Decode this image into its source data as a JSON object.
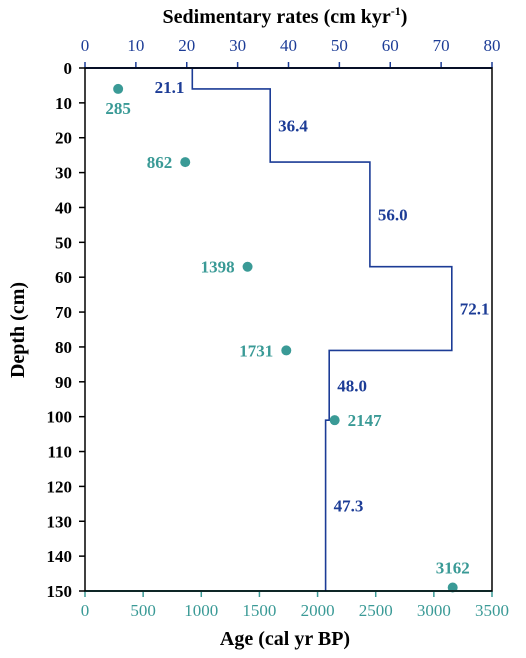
{
  "colors": {
    "age_axis": "#3a9a96",
    "rate_axis": "#1c3c96",
    "depth_axis": "#000000",
    "points": "#3a9a96",
    "rate_line": "#1c3c96"
  },
  "chart_data": {
    "type": "scatter",
    "top_axis": {
      "label": "Sedimentary rates (cm kyr",
      "label_sup": "-1",
      "label_end": ")",
      "range": [
        0,
        80
      ],
      "ticks": [
        0,
        10,
        20,
        30,
        40,
        50,
        60,
        70,
        80
      ]
    },
    "bottom_axis": {
      "label": "Age (cal yr BP)",
      "range": [
        0,
        3500
      ],
      "ticks": [
        0,
        500,
        1000,
        1500,
        2000,
        2500,
        3000,
        3500
      ]
    },
    "left_axis": {
      "label": "Depth (cm)",
      "range": [
        0,
        150
      ],
      "reversed": true,
      "ticks": [
        0,
        10,
        20,
        30,
        40,
        50,
        60,
        70,
        80,
        90,
        100,
        110,
        120,
        130,
        140,
        150
      ]
    },
    "age_points": [
      {
        "depth": 6,
        "age": 285,
        "label": "285"
      },
      {
        "depth": 27,
        "age": 862,
        "label": "862"
      },
      {
        "depth": 57,
        "age": 1398,
        "label": "1398"
      },
      {
        "depth": 81,
        "age": 1731,
        "label": "1731"
      },
      {
        "depth": 101,
        "age": 2147,
        "label": "2147"
      },
      {
        "depth": 149,
        "age": 3162,
        "label": "3162"
      }
    ],
    "rate_steps": [
      {
        "depth_top": 0,
        "depth_bottom": 6,
        "rate": 21.1,
        "label": "21.1"
      },
      {
        "depth_top": 6,
        "depth_bottom": 27,
        "rate": 36.4,
        "label": "36.4"
      },
      {
        "depth_top": 27,
        "depth_bottom": 57,
        "rate": 56.0,
        "label": "56.0"
      },
      {
        "depth_top": 57,
        "depth_bottom": 81,
        "rate": 72.1,
        "label": "72.1"
      },
      {
        "depth_top": 81,
        "depth_bottom": 101,
        "rate": 48.0,
        "label": "48.0"
      },
      {
        "depth_top": 101,
        "depth_bottom": 150,
        "rate": 47.3,
        "label": "47.3"
      }
    ]
  }
}
